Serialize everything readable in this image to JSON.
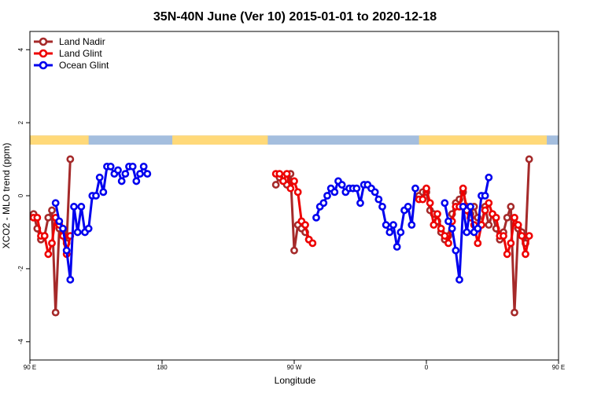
{
  "chart_data": {
    "type": "line",
    "title": "35N-40N June (Ver 10)   2015-01-01 to 2020-12-18",
    "xlabel": "Longitude",
    "ylabel": "XCO2 - MLO trend (ppm)",
    "xlim": [
      90,
      450
    ],
    "ylim": [
      -4.5,
      4.5
    ],
    "x_ticks": [
      {
        "value": 90,
        "label": "90 E"
      },
      {
        "value": 180,
        "label": "180"
      },
      {
        "value": 270,
        "label": "90 W"
      },
      {
        "value": 360,
        "label": "0"
      },
      {
        "value": 450,
        "label": "90 E"
      },
      {
        "value": 540,
        "label": "180"
      }
    ],
    "y_ticks": [
      {
        "value": -4,
        "label": "-4"
      },
      {
        "value": -2,
        "label": "-2"
      },
      {
        "value": 0,
        "label": "0"
      },
      {
        "value": 2,
        "label": "2"
      },
      {
        "value": 4,
        "label": "4"
      }
    ],
    "land_band": {
      "y_range": [
        1.4,
        1.65
      ],
      "ocean_color": "#a4bede",
      "land_color": "#ffd979",
      "land_segments": [
        [
          90,
          130
        ],
        [
          187,
          252
        ],
        [
          355,
          442
        ],
        [
          490,
          520
        ]
      ]
    },
    "legend_position": "top-left",
    "series": [
      {
        "name": "Land Nadir",
        "color": "#a52a2a",
        "points": [
          [
            92.5,
            -0.5
          ],
          [
            95,
            -0.9
          ],
          [
            97.5,
            -1.2
          ],
          [
            100,
            -1.1
          ],
          [
            102.5,
            -0.6
          ],
          [
            105,
            -0.4
          ],
          [
            107.5,
            -3.2
          ],
          [
            110,
            -0.9
          ],
          [
            112.5,
            -1.0
          ],
          [
            115,
            -1.3
          ],
          [
            117.5,
            1.0
          ],
          [
            257.5,
            0.3
          ],
          [
            260,
            0.5
          ],
          [
            262.5,
            0.4
          ],
          [
            265,
            0.3
          ],
          [
            267.5,
            0.6
          ],
          [
            270,
            -1.5
          ],
          [
            272.5,
            -0.8
          ],
          [
            275,
            -0.9
          ],
          [
            277.5,
            -1.0
          ],
          [
            280,
            -1.2
          ],
          [
            355,
            0.0
          ],
          [
            357.5,
            0.1
          ],
          [
            360,
            0.1
          ],
          [
            362.5,
            -0.4
          ],
          [
            365,
            -0.5
          ],
          [
            367.5,
            -0.7
          ],
          [
            370,
            -1.0
          ],
          [
            372.5,
            -1.2
          ],
          [
            375,
            -1.1
          ],
          [
            377.5,
            -0.5
          ],
          [
            380,
            -0.2
          ],
          [
            382.5,
            -0.1
          ],
          [
            385,
            0.1
          ],
          [
            387.5,
            -0.3
          ],
          [
            390,
            -0.5
          ],
          [
            392.5,
            -0.3
          ],
          [
            395,
            -0.6
          ],
          [
            397.5,
            -0.8
          ],
          [
            400,
            -0.3
          ],
          [
            402.5,
            -0.8
          ],
          [
            405,
            -0.5
          ],
          [
            407.5,
            -0.9
          ],
          [
            410,
            -1.2
          ],
          [
            412.5,
            -1.0
          ],
          [
            415,
            -0.6
          ],
          [
            417.5,
            -0.3
          ],
          [
            420,
            -3.2
          ],
          [
            422.5,
            -0.9
          ],
          [
            425,
            -1.0
          ],
          [
            427.5,
            -1.3
          ],
          [
            430,
            1.0
          ]
        ]
      },
      {
        "name": "Land Glint",
        "color": "#ee0000",
        "points": [
          [
            92.5,
            -0.6
          ],
          [
            95,
            -0.6
          ],
          [
            97.5,
            -1.1
          ],
          [
            100,
            -1.1
          ],
          [
            102.5,
            -1.6
          ],
          [
            105,
            -1.3
          ],
          [
            107.5,
            -0.6
          ],
          [
            110,
            -0.8
          ],
          [
            112.5,
            -1.1
          ],
          [
            115,
            -1.6
          ],
          [
            117.5,
            -1.1
          ],
          [
            257.5,
            0.6
          ],
          [
            260,
            0.6
          ],
          [
            262.5,
            0.4
          ],
          [
            265,
            0.6
          ],
          [
            267.5,
            0.2
          ],
          [
            270,
            0.4
          ],
          [
            272.5,
            0.1
          ],
          [
            275,
            -0.7
          ],
          [
            277.5,
            -0.8
          ],
          [
            280,
            -1.2
          ],
          [
            282.5,
            -1.3
          ],
          [
            355,
            -0.1
          ],
          [
            357.5,
            -0.1
          ],
          [
            360,
            0.2
          ],
          [
            362.5,
            -0.2
          ],
          [
            365,
            -0.8
          ],
          [
            367.5,
            -0.5
          ],
          [
            370,
            -0.9
          ],
          [
            372.5,
            -1.1
          ],
          [
            375,
            -1.3
          ],
          [
            377.5,
            -0.7
          ],
          [
            380,
            -0.3
          ],
          [
            382.5,
            -0.3
          ],
          [
            385,
            0.2
          ],
          [
            387.5,
            -0.4
          ],
          [
            390,
            -0.6
          ],
          [
            392.5,
            -0.8
          ],
          [
            395,
            -1.3
          ],
          [
            397.5,
            -0.8
          ],
          [
            400,
            -0.4
          ],
          [
            402.5,
            -0.2
          ],
          [
            405,
            -0.5
          ],
          [
            407.5,
            -0.6
          ],
          [
            410,
            -1.1
          ],
          [
            412.5,
            -1.1
          ],
          [
            415,
            -1.6
          ],
          [
            417.5,
            -1.3
          ],
          [
            420,
            -0.6
          ],
          [
            422.5,
            -0.8
          ],
          [
            425,
            -1.1
          ],
          [
            427.5,
            -1.6
          ],
          [
            430,
            -1.1
          ]
        ]
      },
      {
        "name": "Ocean Glint",
        "color": "#0000ee",
        "points": [
          [
            107.5,
            -0.2
          ],
          [
            110,
            -0.7
          ],
          [
            112.5,
            -0.9
          ],
          [
            115,
            -1.5
          ],
          [
            117.5,
            -2.3
          ],
          [
            120,
            -0.3
          ],
          [
            122.5,
            -1.0
          ],
          [
            125,
            -0.3
          ],
          [
            127.5,
            -1.0
          ],
          [
            130,
            -0.9
          ],
          [
            132.5,
            0.0
          ],
          [
            135,
            0.0
          ],
          [
            137.5,
            0.5
          ],
          [
            140,
            0.1
          ],
          [
            142.5,
            0.8
          ],
          [
            145,
            0.8
          ],
          [
            147.5,
            0.6
          ],
          [
            150,
            0.7
          ],
          [
            152.5,
            0.4
          ],
          [
            155,
            0.6
          ],
          [
            157.5,
            0.8
          ],
          [
            160,
            0.8
          ],
          [
            162.5,
            0.4
          ],
          [
            165,
            0.6
          ],
          [
            167.5,
            0.8
          ],
          [
            170,
            0.6
          ],
          [
            285,
            -0.6
          ],
          [
            287.5,
            -0.3
          ],
          [
            290,
            -0.2
          ],
          [
            292.5,
            0.0
          ],
          [
            295,
            0.2
          ],
          [
            297.5,
            0.1
          ],
          [
            300,
            0.4
          ],
          [
            302.5,
            0.3
          ],
          [
            305,
            0.1
          ],
          [
            307.5,
            0.2
          ],
          [
            310,
            0.2
          ],
          [
            312.5,
            0.2
          ],
          [
            315,
            -0.2
          ],
          [
            317.5,
            0.3
          ],
          [
            320,
            0.3
          ],
          [
            322.5,
            0.2
          ],
          [
            325,
            0.1
          ],
          [
            327.5,
            -0.1
          ],
          [
            330,
            -0.3
          ],
          [
            332.5,
            -0.8
          ],
          [
            335,
            -1.0
          ],
          [
            337.5,
            -0.8
          ],
          [
            340,
            -1.4
          ],
          [
            342.5,
            -1.0
          ],
          [
            345,
            -0.4
          ],
          [
            347.5,
            -0.3
          ],
          [
            350,
            -0.8
          ],
          [
            352.5,
            0.2
          ],
          [
            372.5,
            -0.2
          ],
          [
            375,
            -0.7
          ],
          [
            377.5,
            -0.9
          ],
          [
            380,
            -1.5
          ],
          [
            382.5,
            -2.3
          ],
          [
            385,
            -0.3
          ],
          [
            387.5,
            -1.0
          ],
          [
            390,
            -0.3
          ],
          [
            392.5,
            -1.0
          ],
          [
            395,
            -0.9
          ],
          [
            397.5,
            0.0
          ],
          [
            400,
            0.0
          ],
          [
            402.5,
            0.5
          ]
        ]
      }
    ]
  }
}
